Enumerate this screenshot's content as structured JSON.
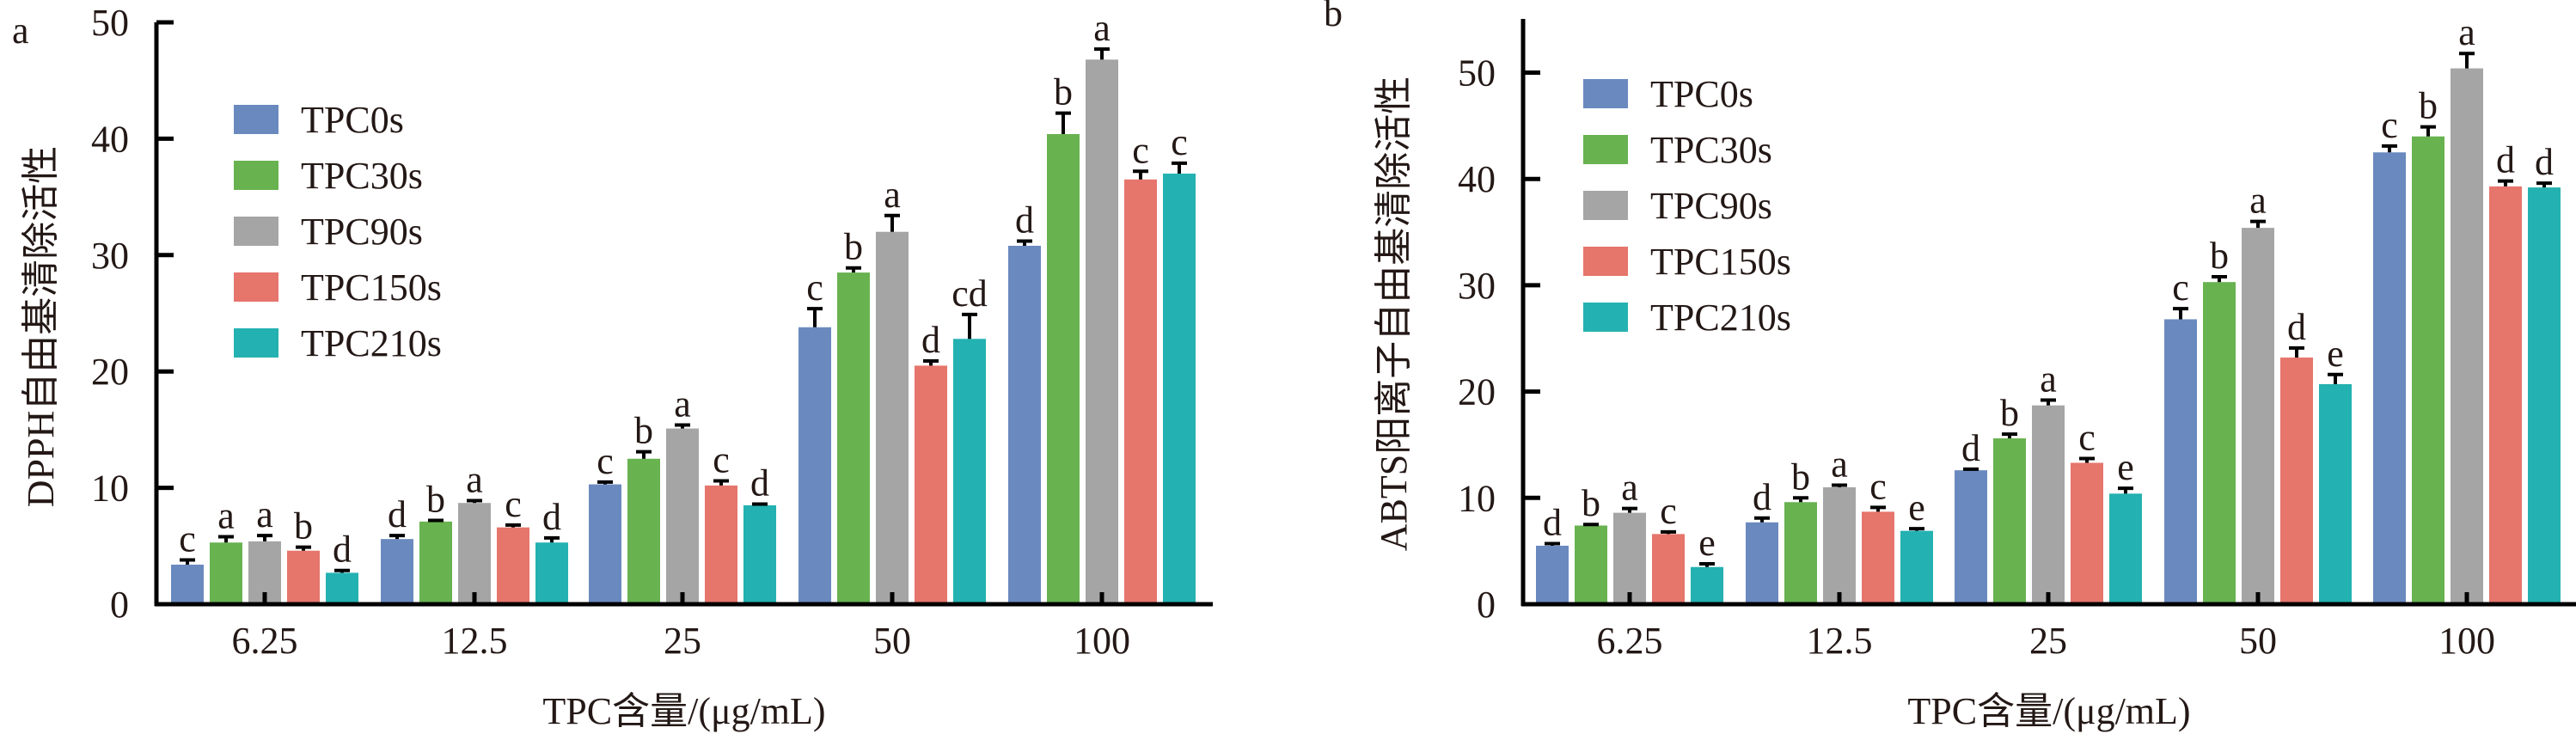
{
  "chart_data": [
    {
      "type": "bar",
      "panel_label": "a",
      "title": "",
      "xlabel": "TPC含量/(μg/mL)",
      "ylabel": "DPPH自由基清除活性",
      "ylim": [
        0,
        50
      ],
      "yticks": [
        0,
        10,
        20,
        30,
        40,
        50
      ],
      "grid": false,
      "legend_position": "top-left",
      "categories": [
        "6.25",
        "12.5",
        "25",
        "50",
        "100"
      ],
      "series": [
        {
          "name": "TPC0s",
          "color": "#6A89BF",
          "values": [
            3.4,
            5.6,
            10.3,
            23.8,
            30.8
          ],
          "errors": [
            0.4,
            0.3,
            0.2,
            1.6,
            0.4
          ],
          "labels": [
            "c",
            "d",
            "c",
            "c",
            "d"
          ]
        },
        {
          "name": "TPC30s",
          "color": "#68B250",
          "values": [
            5.3,
            7.1,
            12.5,
            28.5,
            40.4
          ],
          "errors": [
            0.5,
            0.1,
            0.6,
            0.4,
            1.8
          ],
          "labels": [
            "a",
            "b",
            "b",
            "b",
            "b"
          ]
        },
        {
          "name": "TPC90s",
          "color": "#A5A5A5",
          "values": [
            5.4,
            8.7,
            15.1,
            32.0,
            46.8
          ],
          "errors": [
            0.5,
            0.2,
            0.3,
            1.4,
            0.9
          ],
          "labels": [
            "a",
            "a",
            "a",
            "a",
            "a"
          ]
        },
        {
          "name": "TPC150s",
          "color": "#E6756C",
          "values": [
            4.6,
            6.6,
            10.2,
            20.5,
            36.5
          ],
          "errors": [
            0.3,
            0.2,
            0.4,
            0.4,
            0.7
          ],
          "labels": [
            "b",
            "c",
            "c",
            "d",
            "c"
          ]
        },
        {
          "name": "TPC210s",
          "color": "#24B1B1",
          "values": [
            2.7,
            5.3,
            8.5,
            22.8,
            37.0
          ],
          "errors": [
            0.2,
            0.4,
            0.1,
            2.1,
            0.9
          ],
          "labels": [
            "d",
            "d",
            "d",
            "cd",
            "c"
          ]
        }
      ]
    },
    {
      "type": "bar",
      "panel_label": "b",
      "title": "",
      "xlabel": "TPC含量/(μg/mL)",
      "ylabel": "ABTS阳离子自由基清除活性",
      "ylim": [
        0,
        55
      ],
      "yticks": [
        0,
        10,
        20,
        30,
        40,
        50
      ],
      "grid": false,
      "legend_position": "top-left",
      "categories": [
        "6.25",
        "12.5",
        "25",
        "50",
        "100"
      ],
      "series": [
        {
          "name": "TPC0s",
          "color": "#6A89BF",
          "values": [
            5.5,
            7.7,
            12.6,
            26.8,
            42.5
          ],
          "errors": [
            0.2,
            0.4,
            0.1,
            1.0,
            0.6
          ],
          "labels": [
            "d",
            "d",
            "d",
            "c",
            "c"
          ]
        },
        {
          "name": "TPC30s",
          "color": "#68B250",
          "values": [
            7.4,
            9.6,
            15.6,
            30.3,
            44.0
          ],
          "errors": [
            0.1,
            0.4,
            0.4,
            0.5,
            0.9
          ],
          "labels": [
            "b",
            "b",
            "b",
            "b",
            "b"
          ]
        },
        {
          "name": "TPC90s",
          "color": "#A5A5A5",
          "values": [
            8.6,
            11.0,
            18.7,
            35.4,
            50.4
          ],
          "errors": [
            0.4,
            0.2,
            0.5,
            0.6,
            1.4
          ],
          "labels": [
            "a",
            "a",
            "a",
            "a",
            "a"
          ]
        },
        {
          "name": "TPC150s",
          "color": "#E6756C",
          "values": [
            6.6,
            8.7,
            13.3,
            23.2,
            39.3
          ],
          "errors": [
            0.2,
            0.4,
            0.4,
            0.9,
            0.5
          ],
          "labels": [
            "c",
            "c",
            "c",
            "d",
            "d"
          ]
        },
        {
          "name": "TPC210s",
          "color": "#24B1B1",
          "values": [
            3.5,
            6.9,
            10.4,
            20.7,
            39.2
          ],
          "errors": [
            0.3,
            0.2,
            0.5,
            0.9,
            0.4
          ],
          "labels": [
            "e",
            "e",
            "e",
            "e",
            "d"
          ]
        }
      ]
    }
  ]
}
